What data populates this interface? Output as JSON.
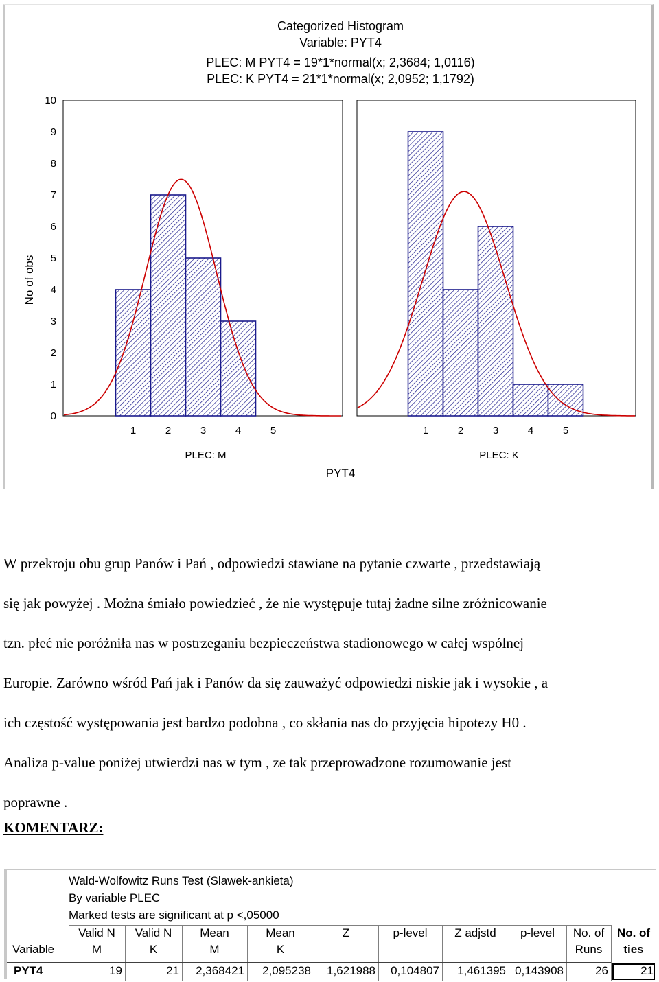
{
  "chart_data": {
    "type": "bar",
    "title": "Categorized Histogram",
    "subtitle": "Variable: PYT4",
    "fit_lines": [
      "PLEC: M PYT4 = 19*1*normal(x; 2,3684; 1,0116)",
      "PLEC: K PYT4 = 21*1*normal(x; 2,0952; 1,1792)"
    ],
    "ylabel": "No of obs",
    "xlabel": "PYT4",
    "ylim": [
      0,
      10
    ],
    "yticks": [
      "0",
      "1",
      "2",
      "3",
      "4",
      "5",
      "6",
      "7",
      "8",
      "9",
      "10"
    ],
    "xticks": [
      "1",
      "2",
      "3",
      "4",
      "5"
    ],
    "panels": [
      {
        "name": "PLEC: M",
        "categories": [
          1,
          2,
          3,
          4,
          5
        ],
        "values": [
          4,
          7,
          5,
          3,
          0
        ],
        "normal_fit": {
          "n": 19,
          "mean": 2.3684,
          "sd": 1.0116
        }
      },
      {
        "name": "PLEC: K",
        "categories": [
          1,
          2,
          3,
          4,
          5
        ],
        "values": [
          9,
          4,
          6,
          1,
          1
        ],
        "normal_fit": {
          "n": 21,
          "mean": 2.0952,
          "sd": 1.1792
        }
      }
    ],
    "colors": {
      "bar_stroke": "#1a1a8c",
      "bar_hatch": "#1a1a8c",
      "curve": "#cc0000",
      "axis": "#000000"
    }
  },
  "document": {
    "lines": [
      "W przekroju obu grup Panów  i Pań , odpowiedzi stawiane na pytanie czwarte , przedstawiają",
      "się jak powyżej . Można śmiało powiedzieć , że nie występuje tutaj żadne silne zróżnicowanie",
      "tzn. płeć nie poróżniła nas w postrzeganiu bezpieczeństwa stadionowego w całej wspólnej",
      "Europie. Zarówno wśród Pań jak i Panów da się zauważyć odpowiedzi niskie jak i wysokie , a",
      "ich częstość występowania jest bardzo podobna , co skłania nas do przyjęcia hipotezy H0 .",
      "Analiza p-value poniżej utwierdzi nas w tym , ze tak przeprowadzone rozumowanie jest",
      "poprawne ."
    ],
    "komentarz": "KOMENTARZ:"
  },
  "stats_table": {
    "header_lines": [
      "Wald-Wolfowitz Runs Test (Slawek-ankieta)",
      "By variable PLEC",
      "Marked tests are significant at p <,05000"
    ],
    "variable_header": "Variable",
    "columns": [
      {
        "top": "Valid N",
        "bottom": "M",
        "bold": false
      },
      {
        "top": "Valid N",
        "bottom": "K",
        "bold": false
      },
      {
        "top": "Mean",
        "bottom": "M",
        "bold": false
      },
      {
        "top": "Mean",
        "bottom": "K",
        "bold": false
      },
      {
        "top": "Z",
        "bottom": "",
        "bold": false
      },
      {
        "top": "p-level",
        "bottom": "",
        "bold": false
      },
      {
        "top": "Z adjstd",
        "bottom": "",
        "bold": false
      },
      {
        "top": "p-level",
        "bottom": "",
        "bold": false
      },
      {
        "top": "No. of",
        "bottom": "Runs",
        "bold": false
      },
      {
        "top": "No. of",
        "bottom": "ties",
        "bold": true
      }
    ],
    "rows": [
      {
        "variable": "PYT4",
        "values": [
          "19",
          "21",
          "2,368421",
          "2,095238",
          "1,621988",
          "0,104807",
          "1,461395",
          "0,143908",
          "26",
          "21"
        ]
      }
    ]
  }
}
